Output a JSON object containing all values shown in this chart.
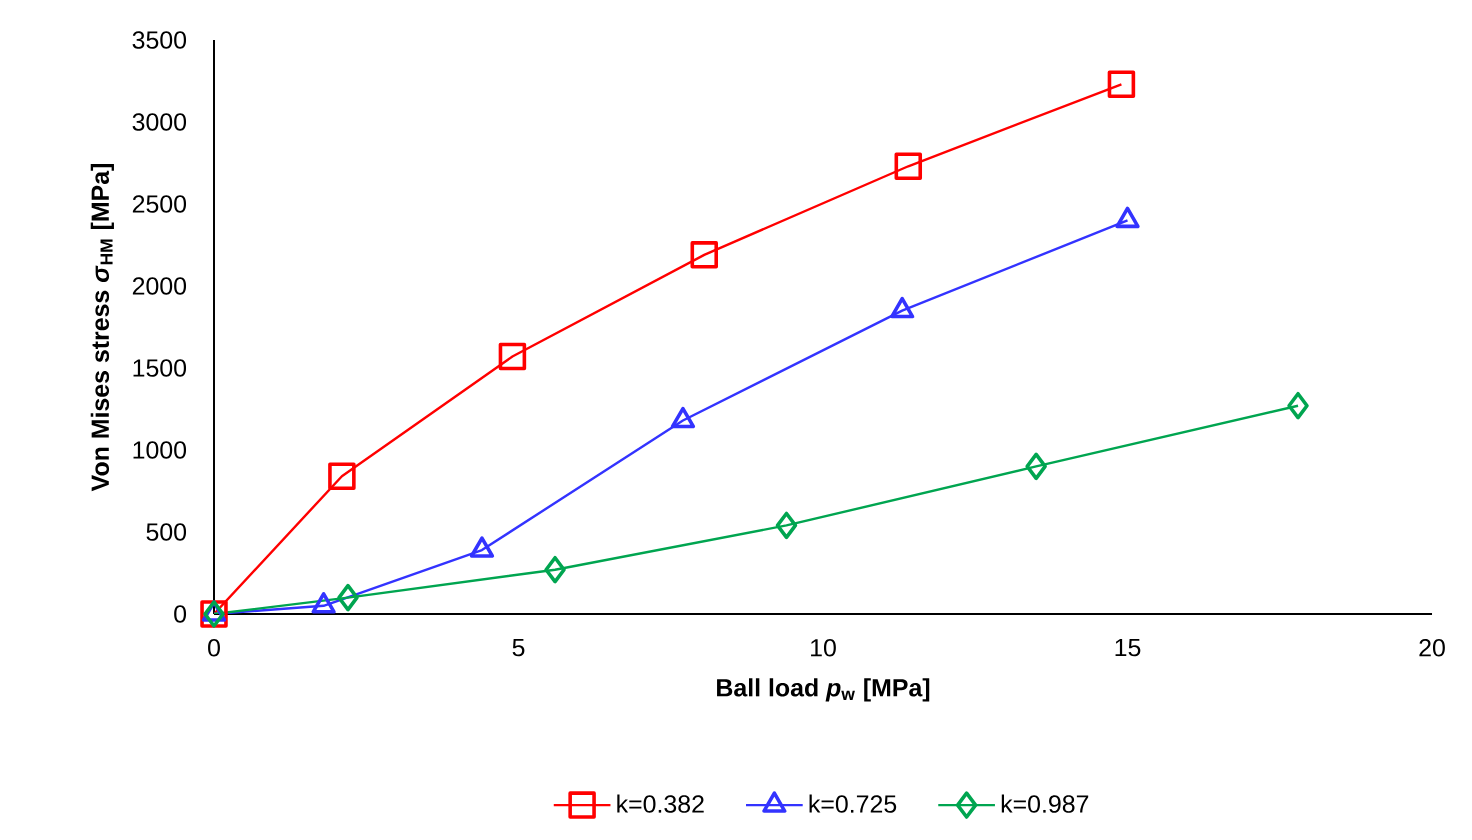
{
  "chart_data": {
    "type": "line",
    "xlabel": "Ball load *p*$_{w}$ [MPa]",
    "ylabel": "Von Mises stress *σ*$_{HM}$ [MPa]",
    "xlim": [
      0,
      20
    ],
    "xticks": [
      0,
      5,
      10,
      15,
      20
    ],
    "ylim": [
      0,
      3500
    ],
    "yticks": [
      0,
      500,
      1000,
      1500,
      2000,
      2500,
      3000,
      3500
    ],
    "grid": false,
    "legend": "bottom",
    "line_style": "solid",
    "series": [
      {
        "name": "k=0.382",
        "color": "#ff0000",
        "marker": "square",
        "x": [
          0,
          2.1,
          4.9,
          8.05,
          11.4,
          14.9
        ],
        "values": [
          0,
          840,
          1570,
          2190,
          2730,
          3230
        ]
      },
      {
        "name": "k=0.725",
        "color": "#3333ff",
        "marker": "triangle",
        "x": [
          0,
          1.8,
          4.4,
          7.7,
          11.3,
          15.0
        ],
        "values": [
          0,
          50,
          390,
          1180,
          1850,
          2400
        ]
      },
      {
        "name": "k=0.987",
        "color": "#00a550",
        "marker": "diamond",
        "x": [
          0,
          2.2,
          5.6,
          9.4,
          13.5,
          17.8
        ],
        "values": [
          0,
          100,
          270,
          540,
          900,
          1270
        ]
      }
    ]
  }
}
